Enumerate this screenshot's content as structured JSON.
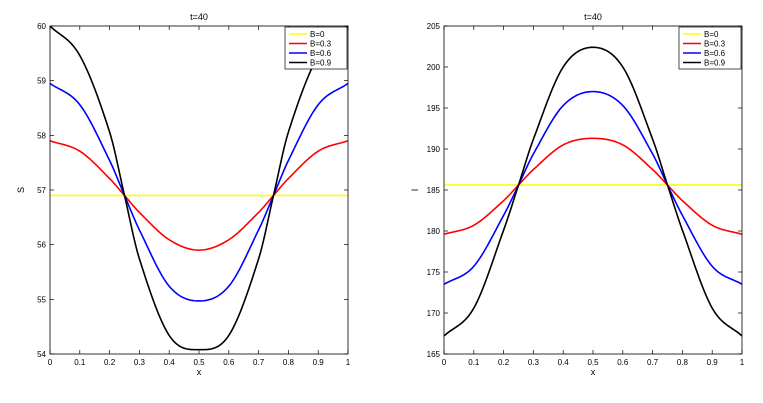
{
  "chart_data": [
    {
      "type": "line",
      "title": "t=40",
      "xlabel": "x",
      "ylabel": "S",
      "xlim": [
        0,
        1
      ],
      "ylim": [
        54,
        60
      ],
      "xticks": [
        0,
        0.1,
        0.2,
        0.3,
        0.4,
        0.5,
        0.6,
        0.7,
        0.8,
        0.9,
        1
      ],
      "yticks": [
        54,
        55,
        56,
        57,
        58,
        59,
        60
      ],
      "xtick_labels": [
        "0",
        "0.1",
        "0.2",
        "0.3",
        "0.4",
        "0.5",
        "0.6",
        "0.7",
        "0.8",
        "0.9",
        "1"
      ],
      "ytick_labels": [
        "54",
        "55",
        "56",
        "57",
        "58",
        "59",
        "60"
      ],
      "grid": false,
      "legend_position": "top-right",
      "series": [
        {
          "name": "B=0",
          "color": "#ffff00",
          "x": [
            0,
            0.1,
            0.2,
            0.25,
            0.3,
            0.4,
            0.5,
            0.6,
            0.7,
            0.75,
            0.8,
            0.9,
            1
          ],
          "y": [
            56.9,
            56.9,
            56.9,
            56.9,
            56.9,
            56.9,
            56.9,
            56.9,
            56.9,
            56.9,
            56.9,
            56.9,
            56.9
          ]
        },
        {
          "name": "B=0.3",
          "color": "#ff0000",
          "x": [
            0,
            0.1,
            0.2,
            0.25,
            0.3,
            0.4,
            0.5,
            0.6,
            0.7,
            0.75,
            0.8,
            0.9,
            1
          ],
          "y": [
            57.9,
            57.71,
            57.21,
            56.9,
            56.59,
            56.09,
            55.9,
            56.09,
            56.59,
            56.9,
            57.21,
            57.71,
            57.9
          ]
        },
        {
          "name": "B=0.6",
          "color": "#0000ff",
          "x": [
            0,
            0.1,
            0.2,
            0.25,
            0.3,
            0.4,
            0.5,
            0.6,
            0.7,
            0.75,
            0.8,
            0.9,
            1
          ],
          "y": [
            58.95,
            58.56,
            57.54,
            56.9,
            56.27,
            55.24,
            54.97,
            55.24,
            56.27,
            56.9,
            57.54,
            58.56,
            58.95
          ]
        },
        {
          "name": "B=0.9",
          "color": "#000000",
          "x": [
            0,
            0.1,
            0.2,
            0.25,
            0.3,
            0.4,
            0.5,
            0.6,
            0.7,
            0.75,
            0.8,
            0.9,
            1
          ],
          "y": [
            60.0,
            59.46,
            58.06,
            56.9,
            55.74,
            54.34,
            54.08,
            54.34,
            55.74,
            56.9,
            58.06,
            59.46,
            60.0
          ]
        }
      ]
    },
    {
      "type": "line",
      "title": "t=40",
      "xlabel": "x",
      "ylabel": "I",
      "xlim": [
        0,
        1
      ],
      "ylim": [
        165,
        205
      ],
      "xticks": [
        0,
        0.1,
        0.2,
        0.3,
        0.4,
        0.5,
        0.6,
        0.7,
        0.8,
        0.9,
        1
      ],
      "yticks": [
        165,
        170,
        175,
        180,
        185,
        190,
        195,
        200,
        205
      ],
      "xtick_labels": [
        "0",
        "0.1",
        "0.2",
        "0.3",
        "0.4",
        "0.5",
        "0.6",
        "0.7",
        "0.8",
        "0.9",
        "1"
      ],
      "ytick_labels": [
        "165",
        "170",
        "175",
        "180",
        "185",
        "190",
        "195",
        "200",
        "205"
      ],
      "grid": false,
      "legend_position": "top-right",
      "series": [
        {
          "name": "B=0",
          "color": "#ffff00",
          "x": [
            0,
            0.1,
            0.2,
            0.25,
            0.3,
            0.4,
            0.5,
            0.6,
            0.7,
            0.75,
            0.8,
            0.9,
            1
          ],
          "y": [
            185.6,
            185.6,
            185.6,
            185.6,
            185.6,
            185.6,
            185.6,
            185.6,
            185.6,
            185.6,
            185.6,
            185.6,
            185.6
          ]
        },
        {
          "name": "B=0.3",
          "color": "#ff0000",
          "x": [
            0,
            0.1,
            0.2,
            0.25,
            0.3,
            0.4,
            0.5,
            0.6,
            0.7,
            0.75,
            0.8,
            0.9,
            1
          ],
          "y": [
            179.6,
            180.7,
            183.7,
            185.6,
            187.5,
            190.5,
            191.3,
            190.5,
            187.5,
            185.6,
            183.7,
            180.7,
            179.6
          ]
        },
        {
          "name": "B=0.6",
          "color": "#0000ff",
          "x": [
            0,
            0.1,
            0.2,
            0.25,
            0.3,
            0.4,
            0.5,
            0.6,
            0.7,
            0.75,
            0.8,
            0.9,
            1
          ],
          "y": [
            173.5,
            175.7,
            181.9,
            185.6,
            189.4,
            195.3,
            197.0,
            195.3,
            189.4,
            185.6,
            181.9,
            175.7,
            173.5
          ]
        },
        {
          "name": "B=0.9",
          "color": "#000000",
          "x": [
            0,
            0.1,
            0.2,
            0.25,
            0.3,
            0.4,
            0.5,
            0.6,
            0.7,
            0.75,
            0.8,
            0.9,
            1
          ],
          "y": [
            167.2,
            170.6,
            180.1,
            185.6,
            191.2,
            200.0,
            202.4,
            200.0,
            191.2,
            185.6,
            180.1,
            170.6,
            167.2
          ]
        }
      ]
    }
  ]
}
